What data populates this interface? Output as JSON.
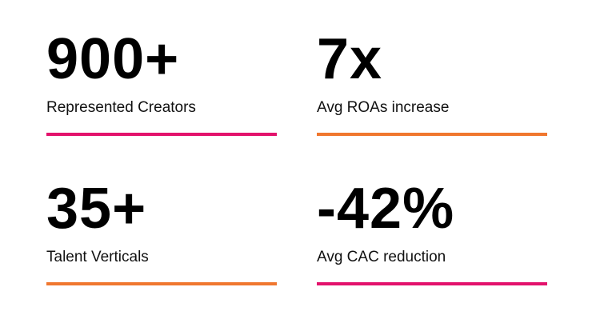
{
  "stats": [
    {
      "value": "900+",
      "label": "Represented Creators"
    },
    {
      "value": "7x",
      "label": "Avg ROAs increase"
    },
    {
      "value": "35+",
      "label": "Talent Verticals"
    },
    {
      "value": "-42%",
      "label": "Avg CAC reduction"
    }
  ]
}
